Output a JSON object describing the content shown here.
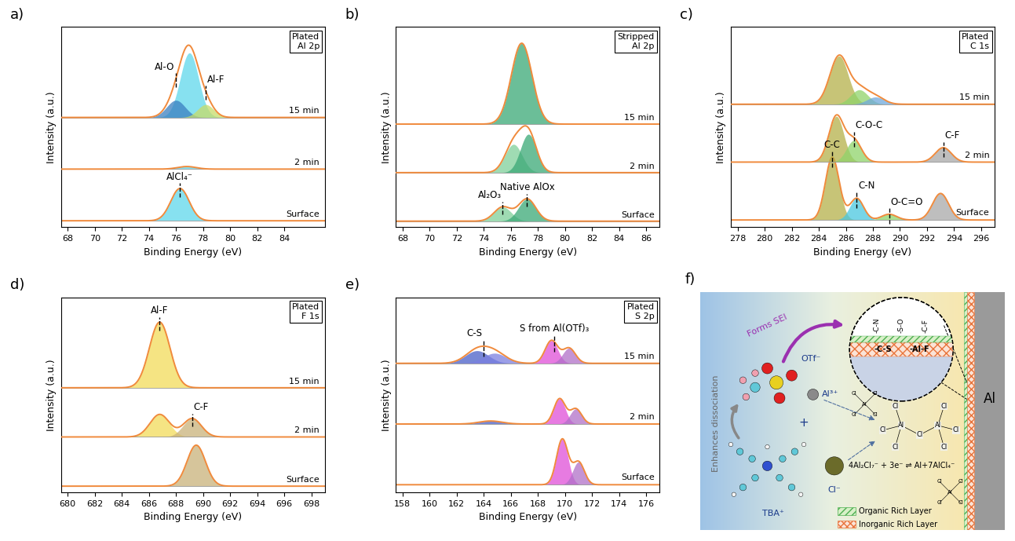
{
  "chart_data": [
    {
      "type": "line",
      "panel": "a)",
      "tag": [
        "Plated",
        "Al 2p"
      ],
      "x_label": "Binding Energy (eV)",
      "y_label": "Intensity (a.u.)",
      "tick_labels": "x",
      "xlim": [
        67.5,
        87
      ],
      "xticks": [
        68,
        70,
        72,
        74,
        76,
        78,
        80,
        82,
        84
      ],
      "ylim": [
        -0.15,
        4.5
      ],
      "series": [
        {
          "name": "Surface",
          "color": "#f08a3c",
          "components": [
            {
              "center": 76.3,
              "height": 0.75,
              "fwhm": 1.6,
              "color": "#5fd8ec"
            }
          ]
        },
        {
          "name": "2 min",
          "color": "#f08a3c",
          "components": [
            {
              "center": 76.8,
              "height": 0.06,
              "fwhm": 1.6,
              "color": "#5fd8ec"
            }
          ]
        },
        {
          "name": "15 min",
          "color": "#f08a3c",
          "components": [
            {
              "center": 77.0,
              "height": 1.5,
              "fwhm": 1.6,
              "color": "#5fd8ec"
            },
            {
              "center": 76.0,
              "height": 0.4,
              "fwhm": 1.6,
              "color": "#3a7fc0"
            },
            {
              "center": 78.2,
              "height": 0.3,
              "fwhm": 1.4,
              "color": "#c8dc6a"
            }
          ]
        }
      ],
      "annotations": [
        {
          "text": "AlCl₄⁻",
          "x": 76.3,
          "series": "Surface"
        },
        {
          "text": "Al-O",
          "x": 76.0,
          "series": "15 min"
        },
        {
          "text": "Al-F",
          "x": 78.2,
          "series": "15 min"
        }
      ]
    },
    {
      "type": "line",
      "panel": "b)",
      "tag": [
        "Stripped",
        "Al 2p"
      ],
      "x_label": "Binding Energy (eV)",
      "y_label": "Intensity (a.u.)",
      "tick_labels": "x",
      "xlim": [
        67.5,
        87
      ],
      "xticks": [
        68,
        70,
        72,
        74,
        76,
        78,
        80,
        82,
        84,
        86
      ],
      "ylim": [
        -0.15,
        4.8
      ],
      "series": [
        {
          "name": "Surface",
          "color": "#f08a3c",
          "components": [
            {
              "center": 75.4,
              "height": 0.35,
              "fwhm": 1.5,
              "color": "#7fcf9a"
            },
            {
              "center": 77.2,
              "height": 0.55,
              "fwhm": 1.5,
              "color": "#3aa876"
            }
          ]
        },
        {
          "name": "2 min",
          "color": "#f08a3c",
          "components": [
            {
              "center": 76.2,
              "height": 0.7,
              "fwhm": 1.5,
              "color": "#7fcf9a"
            },
            {
              "center": 77.3,
              "height": 0.95,
              "fwhm": 1.4,
              "color": "#3aa876"
            }
          ]
        },
        {
          "name": "15 min",
          "color": "#f08a3c",
          "components": [
            {
              "center": 76.8,
              "height": 2.0,
              "fwhm": 1.8,
              "color": "#3aa876"
            }
          ]
        }
      ],
      "annotations": [
        {
          "text": "Al₂O₃",
          "x": 75.4,
          "series": "Surface"
        },
        {
          "text": "Native AlOx",
          "x": 77.2,
          "series": "Surface"
        }
      ]
    },
    {
      "type": "line",
      "panel": "c)",
      "tag": [
        "Plated",
        "C 1s"
      ],
      "x_label": "Binding Energy (eV)",
      "y_label": "Intensity (a.u.)",
      "tick_labels": "x",
      "xlim": [
        277.5,
        297
      ],
      "xticks": [
        278,
        280,
        282,
        284,
        286,
        288,
        290,
        292,
        294,
        296
      ],
      "ylim": [
        -0.15,
        4.0
      ],
      "series": [
        {
          "name": "Surface",
          "color": "#f08a3c",
          "components": [
            {
              "center": 285.0,
              "height": 1.3,
              "fwhm": 1.2,
              "color": "#b5b04a"
            },
            {
              "center": 286.8,
              "height": 0.45,
              "fwhm": 1.2,
              "color": "#49c8e0"
            },
            {
              "center": 289.2,
              "height": 0.12,
              "fwhm": 1.3,
              "color": "#8fd46a"
            },
            {
              "center": 293.0,
              "height": 0.55,
              "fwhm": 1.4,
              "color": "#a8a8a8"
            }
          ]
        },
        {
          "name": "2 min",
          "color": "#f08a3c",
          "components": [
            {
              "center": 285.3,
              "height": 0.95,
              "fwhm": 1.3,
              "color": "#b5b04a"
            },
            {
              "center": 286.6,
              "height": 0.45,
              "fwhm": 1.3,
              "color": "#8fd46a"
            },
            {
              "center": 293.2,
              "height": 0.3,
              "fwhm": 1.4,
              "color": "#a8a8a8"
            }
          ]
        },
        {
          "name": "15 min",
          "color": "#f08a3c",
          "components": [
            {
              "center": 285.5,
              "height": 1.0,
              "fwhm": 1.6,
              "color": "#b5b04a"
            },
            {
              "center": 287.0,
              "height": 0.3,
              "fwhm": 1.5,
              "color": "#8fd46a"
            },
            {
              "center": 288.2,
              "height": 0.15,
              "fwhm": 1.5,
              "color": "#6fa8dc"
            }
          ]
        }
      ],
      "annotations": [
        {
          "text": "C-C",
          "x": 285.0,
          "series": "Surface"
        },
        {
          "text": "C-N",
          "x": 286.8,
          "series": "Surface"
        },
        {
          "text": "O-C=O",
          "x": 289.2,
          "series": "Surface"
        },
        {
          "text": "C-O-C",
          "x": 286.6,
          "series": "2 min"
        },
        {
          "text": "C-F",
          "x": 293.2,
          "series": "2 min"
        }
      ]
    },
    {
      "type": "line",
      "panel": "d)",
      "tag": [
        "Plated",
        "F 1s"
      ],
      "x_label": "Binding Energy (eV)",
      "y_label": "Intensity (a.u.)",
      "tick_labels": "x",
      "xlim": [
        679.5,
        699
      ],
      "xticks": [
        680,
        682,
        684,
        686,
        688,
        690,
        692,
        694,
        696,
        698
      ],
      "ylim": [
        -0.15,
        4.6
      ],
      "series": [
        {
          "name": "Surface",
          "color": "#f08a3c",
          "components": [
            {
              "center": 689.5,
              "height": 1.0,
              "fwhm": 1.6,
              "color": "#c9b27a"
            }
          ]
        },
        {
          "name": "2 min",
          "color": "#f08a3c",
          "components": [
            {
              "center": 686.8,
              "height": 0.55,
              "fwhm": 1.7,
              "color": "#f2dc5a"
            },
            {
              "center": 689.2,
              "height": 0.45,
              "fwhm": 1.6,
              "color": "#c9b27a"
            }
          ]
        },
        {
          "name": "15 min",
          "color": "#f08a3c",
          "components": [
            {
              "center": 686.8,
              "height": 1.6,
              "fwhm": 1.8,
              "color": "#f2dc5a"
            }
          ]
        }
      ],
      "annotations": [
        {
          "text": "C-F",
          "x": 689.2,
          "series": "2 min"
        },
        {
          "text": "Al-F",
          "x": 686.8,
          "series": "15 min"
        }
      ]
    },
    {
      "type": "line",
      "panel": "e)",
      "tag": [
        "Plated",
        "S 2p"
      ],
      "x_label": "Binding Energy (eV)",
      "y_label": "Intensity (a.u.)",
      "tick_labels": "x",
      "xlim": [
        157.5,
        177
      ],
      "xticks": [
        158,
        160,
        162,
        164,
        166,
        168,
        170,
        172,
        174,
        176
      ],
      "ylim": [
        -0.15,
        3.7
      ],
      "series": [
        {
          "name": "Surface",
          "color": "#f08a3c",
          "components": [
            {
              "center": 169.8,
              "height": 0.9,
              "fwhm": 1.0,
              "color": "#e04fd8"
            },
            {
              "center": 171.0,
              "height": 0.45,
              "fwhm": 1.0,
              "color": "#b070c8"
            }
          ]
        },
        {
          "name": "2 min",
          "color": "#f08a3c",
          "components": [
            {
              "center": 164.5,
              "height": 0.06,
              "fwhm": 2.0,
              "color": "#4a5fc8"
            },
            {
              "center": 169.6,
              "height": 0.5,
              "fwhm": 1.0,
              "color": "#e04fd8"
            },
            {
              "center": 170.8,
              "height": 0.3,
              "fwhm": 1.0,
              "color": "#b070c8"
            }
          ]
        },
        {
          "name": "15 min",
          "color": "#f08a3c",
          "components": [
            {
              "center": 163.5,
              "height": 0.25,
              "fwhm": 2.0,
              "color": "#4a5fc8"
            },
            {
              "center": 164.8,
              "height": 0.2,
              "fwhm": 2.0,
              "color": "#7b7fe0"
            },
            {
              "center": 169.0,
              "height": 0.45,
              "fwhm": 1.1,
              "color": "#e04fd8"
            },
            {
              "center": 170.3,
              "height": 0.3,
              "fwhm": 1.1,
              "color": "#b070c8"
            }
          ]
        }
      ],
      "annotations": [
        {
          "text": "C-S",
          "x": 164.0,
          "series": "15 min"
        },
        {
          "text": "S from Al(OTf)₃",
          "x": 169.2,
          "series": "15 min"
        }
      ]
    }
  ],
  "schematic": {
    "panel": "f)",
    "arrow_label": "Forms SEI",
    "side_label": "Enhances dissociation",
    "anion": "OTf⁻",
    "cation": "Al³⁺",
    "plus": "+",
    "organic_cation": "TBA⁺",
    "chloride": "Cl⁻",
    "sei_organic": [
      "-C-N",
      "-S-O",
      "-C-F"
    ],
    "sei_inorganic": [
      "-C-S",
      "-Al-F"
    ],
    "electrode": "Al",
    "reaction": "4Al₂Cl₇⁻ + 3e⁻ ⇌ Al+7AlCl₄⁻",
    "metal": "Al",
    "ligand": "Cl",
    "layers": [
      {
        "name": "Organic Rich Layer",
        "color": "#4caf50"
      },
      {
        "name": "Inorganic Rich Layer",
        "color": "#e8743b"
      }
    ]
  }
}
